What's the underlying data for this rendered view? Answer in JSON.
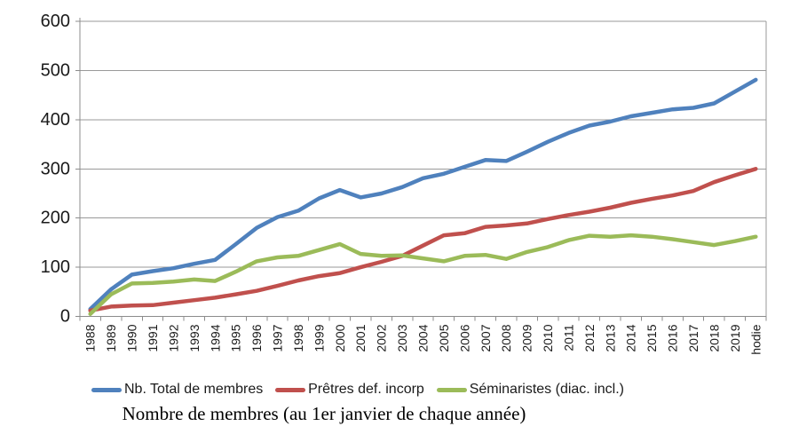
{
  "chart_data": {
    "type": "line",
    "title": "Nombre de membres (au 1er janvier de chaque année)",
    "categories": [
      "1988",
      "1989",
      "1990",
      "1991",
      "1992",
      "1993",
      "1994",
      "1995",
      "1996",
      "1997",
      "1998",
      "1999",
      "2000",
      "2001",
      "2002",
      "2003",
      "2004",
      "2005",
      "2006",
      "2007",
      "2008",
      "2009",
      "2010",
      "2011",
      "2012",
      "2013",
      "2014",
      "2015",
      "2016",
      "2017",
      "2018",
      "2019",
      "hodie"
    ],
    "series": [
      {
        "name": "Nb. Total de membres",
        "color": "#4F81BD",
        "values": [
          15,
          55,
          85,
          92,
          98,
          107,
          115,
          147,
          180,
          202,
          215,
          240,
          257,
          242,
          250,
          263,
          281,
          290,
          304,
          318,
          316,
          335,
          355,
          373,
          388,
          396,
          407,
          414,
          421,
          424,
          433,
          457,
          481
        ]
      },
      {
        "name": "Prêtres def. incorp",
        "color": "#C0504D",
        "values": [
          12,
          20,
          22,
          23,
          28,
          33,
          38,
          45,
          52,
          62,
          73,
          82,
          88,
          100,
          111,
          123,
          144,
          165,
          169,
          182,
          185,
          189,
          198,
          206,
          213,
          221,
          231,
          239,
          246,
          255,
          273,
          287,
          300
        ]
      },
      {
        "name": "Séminaristes (diac. incl.)",
        "color": "#9BBB59",
        "values": [
          5,
          45,
          67,
          68,
          71,
          75,
          72,
          91,
          112,
          120,
          123,
          135,
          147,
          127,
          123,
          124,
          118,
          112,
          123,
          125,
          117,
          131,
          141,
          155,
          164,
          162,
          165,
          162,
          157,
          151,
          145,
          153,
          162
        ]
      }
    ],
    "ylim": [
      0,
      600
    ],
    "ytick_step": 100,
    "ytick_labels": [
      "0",
      "100",
      "200",
      "300",
      "400",
      "500",
      "600"
    ],
    "grid": "horizontal",
    "legend_position": "bottom",
    "gridline_color": "#999999",
    "axis_color": "#8c8c8c",
    "label_color": "#1a1a1a"
  }
}
